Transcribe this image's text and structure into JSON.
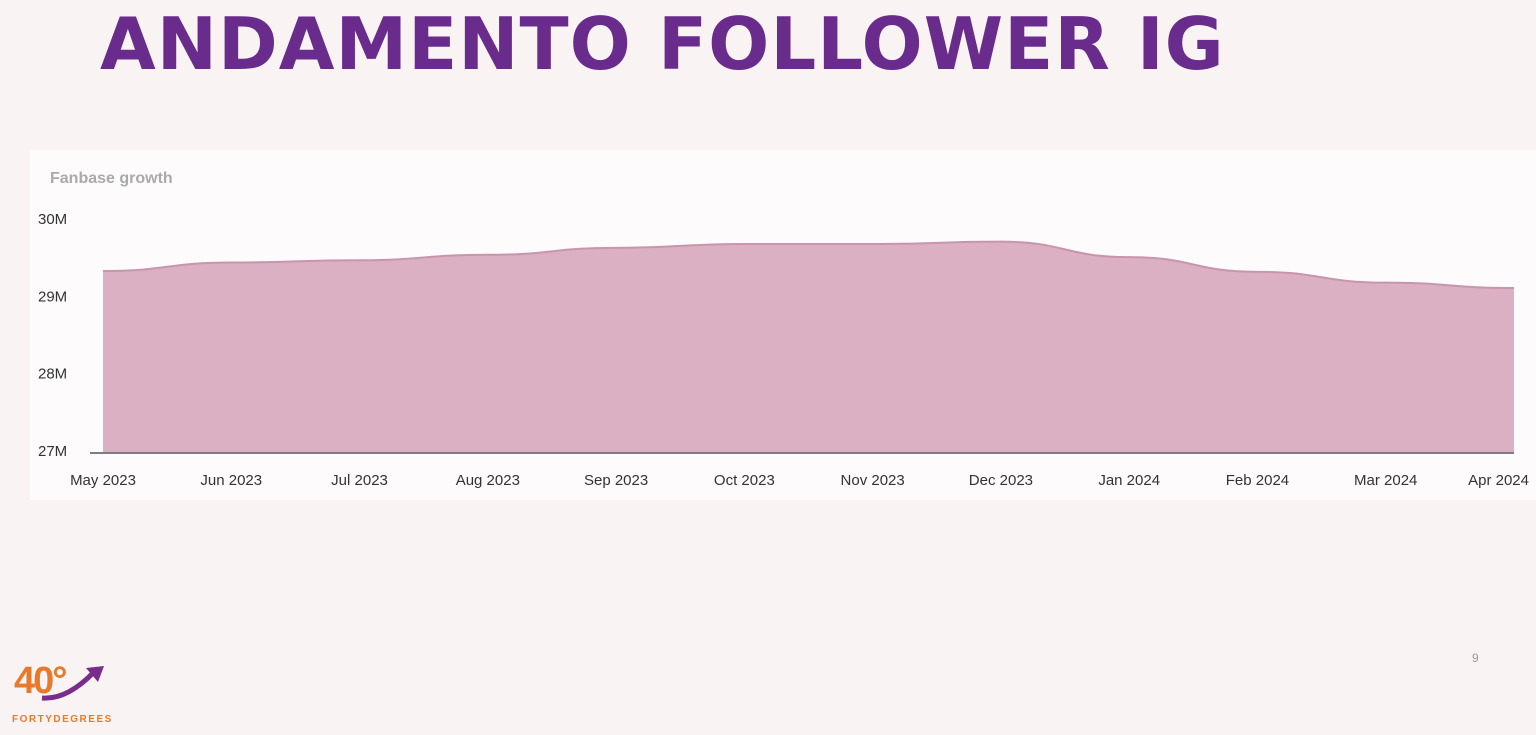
{
  "slide_title": "ANDAMENTO FOLLOWER IG",
  "chart_data": {
    "type": "area",
    "title": "Fanbase growth",
    "categories": [
      "May 2023",
      "Jun 2023",
      "Jul 2023",
      "Aug 2023",
      "Sep 2023",
      "Oct 2023",
      "Nov 2023",
      "Dec 2023",
      "Jan 2024",
      "Feb 2024",
      "Mar 2024",
      "Apr 2024"
    ],
    "values": [
      29.34,
      29.45,
      29.48,
      29.55,
      29.64,
      29.69,
      29.69,
      29.72,
      29.52,
      29.33,
      29.19,
      29.12
    ],
    "color": "#dab0c2",
    "ylim": [
      27,
      30
    ],
    "yticks": [
      {
        "value": 27,
        "label": "27M"
      },
      {
        "value": 28,
        "label": "28M"
      },
      {
        "value": 29,
        "label": "29M"
      },
      {
        "value": 30,
        "label": "30M"
      }
    ],
    "grid": false
  },
  "footer": {
    "logo_mark": "40°",
    "logo_text": "FORTYDEGREES",
    "page_number": "9"
  }
}
